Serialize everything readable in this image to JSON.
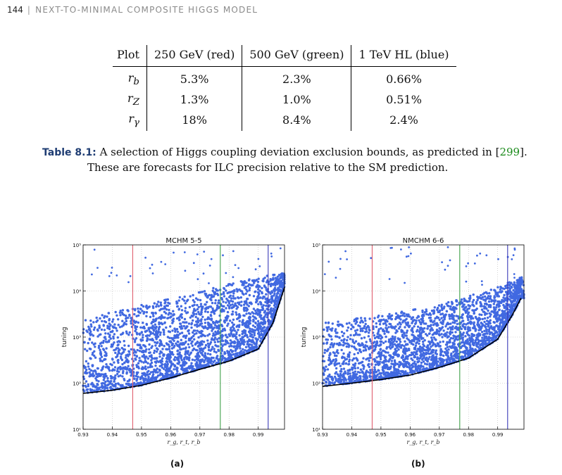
{
  "header": {
    "page_number": "144",
    "separator": "|",
    "running_title": "NEXT-TO-MINIMAL COMPOSITE HIGGS MODEL"
  },
  "table": {
    "columns": [
      "Plot",
      "250 GeV (red)",
      "500 GeV (green)",
      "1 TeV HL (blue)"
    ],
    "rows": [
      {
        "label": "r",
        "sub": "b",
        "cells": [
          "5.3%",
          "2.3%",
          "0.66%"
        ]
      },
      {
        "label": "r",
        "sub": "Z",
        "cells": [
          "1.3%",
          "1.0%",
          "0.51%"
        ]
      },
      {
        "label": "r",
        "sub": "γ",
        "cells": [
          "18%",
          "8.4%",
          "2.4%"
        ]
      }
    ]
  },
  "caption": {
    "label": "Table 8.1:",
    "text_before": "A selection of Higgs coupling deviation exclusion bounds, as predicted in [",
    "cite": "299",
    "text_after": "].",
    "line2": "These are forecasts for ILC precision relative to the SM prediction."
  },
  "figures": [
    {
      "sublabel": "(a)"
    },
    {
      "sublabel": "(b)"
    }
  ],
  "colors": {
    "points": "#4169e1",
    "red_line": "#e06070",
    "green_line": "#3fa14a",
    "blue_line": "#3a3ab8",
    "caption_label": "#1f3d73",
    "cite": "#1a8a1a"
  },
  "chart_data": [
    {
      "type": "scatter",
      "title": "MCHM 5-5",
      "xlabel": "r_g, r_t, r_b",
      "ylabel": "tuning",
      "xlim": [
        0.93,
        0.999
      ],
      "ylim": [
        10,
        100000
      ],
      "yscale": "log",
      "grid": true,
      "xticks": [
        "0.93",
        "0.94",
        "0.95",
        "0.96",
        "0.97",
        "0.98",
        "0.99"
      ],
      "yticks": [
        "10¹",
        "10²",
        "10³",
        "10⁴",
        "10⁵"
      ],
      "vlines": [
        {
          "x": 0.947,
          "color": "red"
        },
        {
          "x": 0.977,
          "color": "green"
        },
        {
          "x": 0.9934,
          "color": "blue"
        }
      ],
      "lower_boundary": {
        "x": [
          0.93,
          0.94,
          0.95,
          0.96,
          0.97,
          0.98,
          0.99,
          0.995,
          0.999
        ],
        "y": [
          60,
          70,
          90,
          130,
          200,
          300,
          550,
          2000,
          12000
        ]
      },
      "upper_envelope": {
        "x": [
          0.93,
          0.95,
          0.97,
          0.99,
          0.999
        ],
        "y": [
          2500,
          5000,
          10000,
          20000,
          25000
        ]
      }
    },
    {
      "type": "scatter",
      "title": "NMCHM 6-6",
      "xlabel": "r_g, r_t, r_b",
      "ylabel": "tuning",
      "xlim": [
        0.93,
        0.999
      ],
      "ylim": [
        10,
        100000
      ],
      "yscale": "log",
      "grid": true,
      "xticks": [
        "0.93",
        "0.94",
        "0.95",
        "0.96",
        "0.97",
        "0.98",
        "0.99"
      ],
      "yticks": [
        "10¹",
        "10²",
        "10³",
        "10⁴",
        "10⁵"
      ],
      "vlines": [
        {
          "x": 0.947,
          "color": "red"
        },
        {
          "x": 0.977,
          "color": "green"
        },
        {
          "x": 0.9934,
          "color": "blue"
        }
      ],
      "lower_boundary": {
        "x": [
          0.93,
          0.94,
          0.95,
          0.96,
          0.97,
          0.98,
          0.99,
          0.995,
          0.998
        ],
        "y": [
          85,
          100,
          120,
          150,
          220,
          350,
          900,
          3000,
          7000
        ]
      },
      "upper_envelope": {
        "x": [
          0.93,
          0.95,
          0.97,
          0.99,
          0.998
        ],
        "y": [
          2000,
          3000,
          5000,
          12000,
          20000
        ]
      }
    }
  ]
}
